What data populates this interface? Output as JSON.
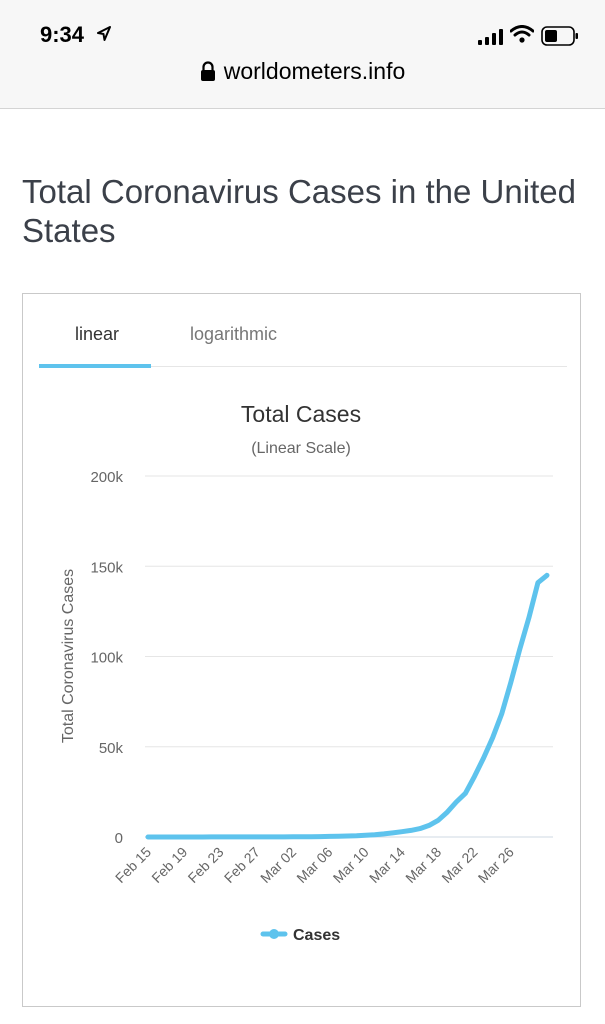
{
  "status_bar": {
    "time": "9:34",
    "icons": [
      "location-arrow-icon",
      "signal-icon",
      "wifi-icon",
      "battery-icon"
    ]
  },
  "browser": {
    "address": "worldometers.info",
    "lock_icon": "lock-icon"
  },
  "page": {
    "title": "Total Coronavirus Cases in the United States"
  },
  "tabs": [
    {
      "label": "linear",
      "active": true
    },
    {
      "label": "logarithmic",
      "active": false
    }
  ],
  "colors": {
    "series": "#5ec3ed",
    "grid": "#e6e6e6",
    "text": "#333333"
  },
  "chart_data": {
    "type": "line",
    "title": "Total Cases",
    "subtitle": "(Linear Scale)",
    "ylabel": "Total Coronavirus Cases",
    "xlabel": "",
    "ylim": [
      0,
      200000
    ],
    "y_ticks": [
      {
        "value": 0,
        "label": "0"
      },
      {
        "value": 50000,
        "label": "50k"
      },
      {
        "value": 100000,
        "label": "100k"
      },
      {
        "value": 150000,
        "label": "150k"
      },
      {
        "value": 200000,
        "label": "200k"
      }
    ],
    "x_tick_labels": [
      "Feb 15",
      "Feb 19",
      "Feb 23",
      "Feb 27",
      "Mar 02",
      "Mar 06",
      "Mar 10",
      "Mar 14",
      "Mar 18",
      "Mar 22",
      "Mar 26"
    ],
    "legend": {
      "position": "bottom-center",
      "entries": [
        "Cases"
      ]
    },
    "grid": true,
    "series": [
      {
        "name": "Cases",
        "x": [
          "Feb 15",
          "Feb 16",
          "Feb 17",
          "Feb 18",
          "Feb 19",
          "Feb 20",
          "Feb 21",
          "Feb 22",
          "Feb 23",
          "Feb 24",
          "Feb 25",
          "Feb 26",
          "Feb 27",
          "Feb 28",
          "Feb 29",
          "Mar 01",
          "Mar 02",
          "Mar 03",
          "Mar 04",
          "Mar 05",
          "Mar 06",
          "Mar 07",
          "Mar 08",
          "Mar 09",
          "Mar 10",
          "Mar 11",
          "Mar 12",
          "Mar 13",
          "Mar 14",
          "Mar 15",
          "Mar 16",
          "Mar 17",
          "Mar 18",
          "Mar 19",
          "Mar 20",
          "Mar 21",
          "Mar 22",
          "Mar 23",
          "Mar 24",
          "Mar 25",
          "Mar 26",
          "Mar 27",
          "Mar 28",
          "Mar 29",
          "Mar 30"
        ],
        "values": [
          15,
          15,
          15,
          15,
          15,
          15,
          15,
          35,
          35,
          53,
          53,
          59,
          60,
          62,
          70,
          75,
          100,
          124,
          158,
          221,
          319,
          435,
          541,
          704,
          994,
          1301,
          1697,
          2247,
          2943,
          3680,
          4663,
          6411,
          9259,
          13789,
          19383,
          24207,
          33546,
          43734,
          54935,
          68211,
          85435,
          104126,
          121478,
          140886,
          145000
        ]
      }
    ]
  }
}
